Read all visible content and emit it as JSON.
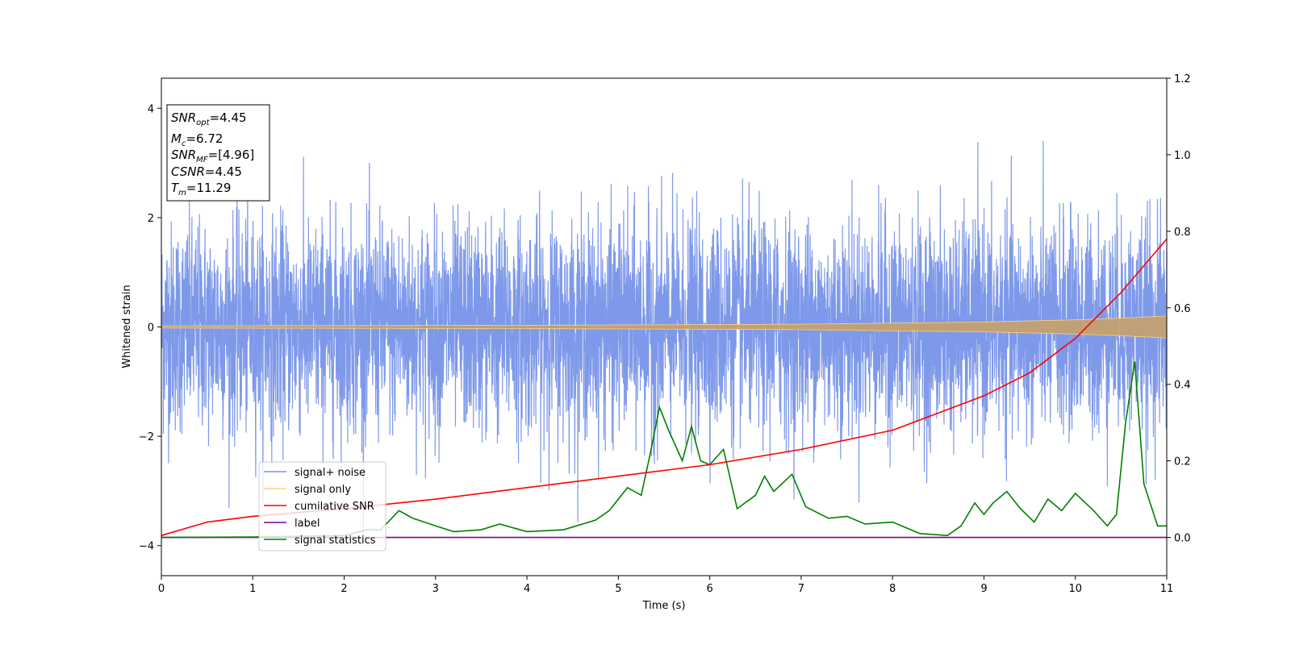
{
  "chart_data": {
    "type": "line",
    "xlabel": "Time (s)",
    "ylabel_left": "Whitened strain",
    "ylabel_right": "",
    "xlim": [
      0,
      11
    ],
    "ylim_left": [
      -4.55,
      4.55
    ],
    "ylim_right": [
      -0.1,
      1.2
    ],
    "x_ticks": [
      "0",
      "1",
      "2",
      "3",
      "4",
      "5",
      "6",
      "7",
      "8",
      "9",
      "10",
      "11"
    ],
    "y_ticks_left": [
      "−4",
      "−2",
      "0",
      "2",
      "4"
    ],
    "y_ticks_right": [
      "0.0",
      "0.2",
      "0.4",
      "0.6",
      "0.8",
      "1.0",
      "1.2"
    ],
    "grid": false,
    "legend_position": "lower-left",
    "info_box": {
      "snr_opt": {
        "name": "SNR",
        "sub": "opt",
        "value": "=4.45"
      },
      "mc": {
        "name": "M",
        "sub": "c",
        "value": "=6.72"
      },
      "snr_mf": {
        "name": "SNR",
        "sub": "MF",
        "value": "=[4.96]"
      },
      "csnr": {
        "name": "CSNR",
        "value": "=4.45"
      },
      "tm": {
        "name": "T",
        "sub": "m",
        "value": "=11.29"
      }
    },
    "series": [
      {
        "name": "signal+ noise",
        "color": "#7793e8",
        "axis": "left",
        "description_values": "white noise, approx. standard deviation 1, peaks to about ±4"
      },
      {
        "name": "signal only",
        "color": "#ffd27a",
        "axis": "left",
        "envelope_points": [
          [
            0,
            0.02
          ],
          [
            4,
            0.03
          ],
          [
            7,
            0.05
          ],
          [
            9,
            0.09
          ],
          [
            10,
            0.13
          ],
          [
            10.5,
            0.16
          ],
          [
            11,
            0.2
          ]
        ]
      },
      {
        "name": "cumilative SNR",
        "color": "#ff0000",
        "axis": "right",
        "points": [
          [
            0,
            0.005
          ],
          [
            0.5,
            0.04
          ],
          [
            1,
            0.055
          ],
          [
            2,
            0.075
          ],
          [
            3,
            0.1
          ],
          [
            4,
            0.13
          ],
          [
            5,
            0.16
          ],
          [
            6,
            0.19
          ],
          [
            7,
            0.23
          ],
          [
            8,
            0.28
          ],
          [
            9,
            0.37
          ],
          [
            9.5,
            0.43
          ],
          [
            10,
            0.52
          ],
          [
            10.5,
            0.64
          ],
          [
            11,
            0.78
          ]
        ]
      },
      {
        "name": "label",
        "color": "#800080",
        "axis": "right",
        "points": [
          [
            0,
            0.0
          ],
          [
            11,
            0.0
          ]
        ]
      },
      {
        "name": "signal statistics",
        "color": "#008000",
        "axis": "right",
        "points": [
          [
            0,
            0.0
          ],
          [
            1,
            0.001
          ],
          [
            2,
            0.005
          ],
          [
            2.25,
            0.02
          ],
          [
            2.4,
            0.02
          ],
          [
            2.6,
            0.07
          ],
          [
            2.75,
            0.05
          ],
          [
            3,
            0.03
          ],
          [
            3.2,
            0.015
          ],
          [
            3.5,
            0.02
          ],
          [
            3.7,
            0.035
          ],
          [
            4,
            0.015
          ],
          [
            4.4,
            0.02
          ],
          [
            4.75,
            0.045
          ],
          [
            4.9,
            0.07
          ],
          [
            5.1,
            0.13
          ],
          [
            5.25,
            0.11
          ],
          [
            5.35,
            0.22
          ],
          [
            5.45,
            0.34
          ],
          [
            5.55,
            0.28
          ],
          [
            5.7,
            0.2
          ],
          [
            5.8,
            0.29
          ],
          [
            5.9,
            0.2
          ],
          [
            6,
            0.19
          ],
          [
            6.15,
            0.23
          ],
          [
            6.3,
            0.075
          ],
          [
            6.5,
            0.11
          ],
          [
            6.6,
            0.16
          ],
          [
            6.7,
            0.12
          ],
          [
            6.9,
            0.165
          ],
          [
            7.05,
            0.08
          ],
          [
            7.3,
            0.05
          ],
          [
            7.5,
            0.055
          ],
          [
            7.7,
            0.035
          ],
          [
            8,
            0.04
          ],
          [
            8.3,
            0.01
          ],
          [
            8.6,
            0.005
          ],
          [
            8.75,
            0.03
          ],
          [
            8.9,
            0.09
          ],
          [
            9,
            0.06
          ],
          [
            9.1,
            0.09
          ],
          [
            9.25,
            0.12
          ],
          [
            9.4,
            0.075
          ],
          [
            9.55,
            0.04
          ],
          [
            9.7,
            0.1
          ],
          [
            9.85,
            0.07
          ],
          [
            10,
            0.115
          ],
          [
            10.2,
            0.07
          ],
          [
            10.35,
            0.03
          ],
          [
            10.45,
            0.06
          ],
          [
            10.55,
            0.3
          ],
          [
            10.65,
            0.46
          ],
          [
            10.75,
            0.14
          ],
          [
            10.9,
            0.03
          ],
          [
            11,
            0.03
          ]
        ]
      }
    ]
  }
}
